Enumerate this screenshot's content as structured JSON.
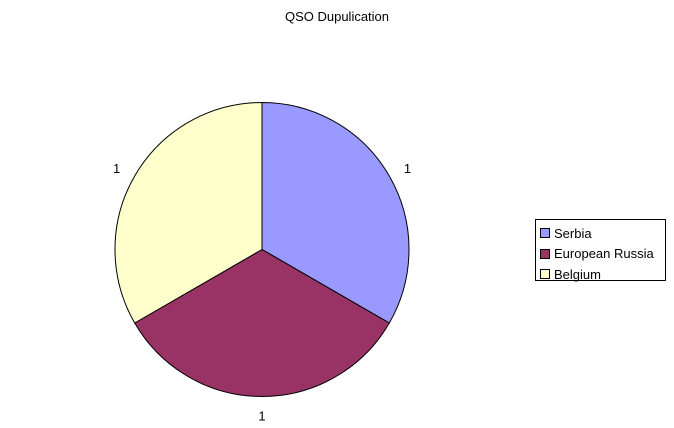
{
  "chart_data": {
    "type": "pie",
    "title": "QSO Dupulication",
    "categories": [
      "Serbia",
      "European Russia",
      "Belgium"
    ],
    "values": [
      1,
      1,
      1
    ],
    "data_labels": [
      "1",
      "1",
      "1"
    ],
    "colors": [
      "#9999ff",
      "#993366",
      "#ffffcc"
    ],
    "legend_position": "right"
  }
}
